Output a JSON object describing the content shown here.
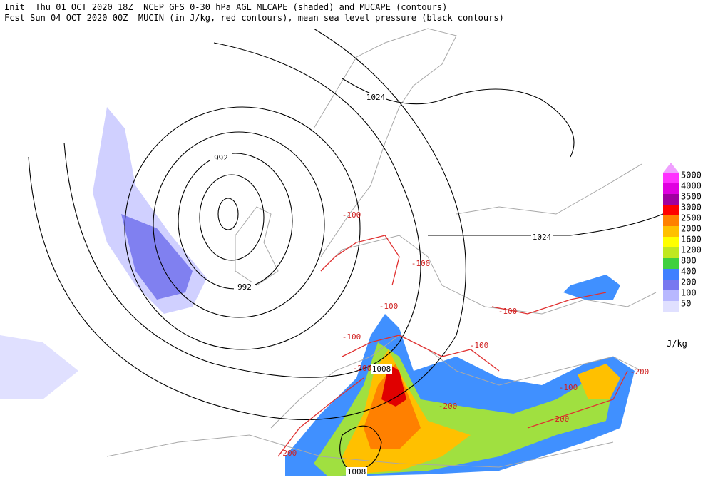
{
  "header": {
    "line1": "Init  Thu 01 OCT 2020 18Z  NCEP GFS 0-30 hPa AGL MLCAPE (shaded) and MUCAPE (contours)",
    "line2": "Fcst Sun 04 OCT 2020 00Z  MUCIN (in J/kg, red contours), mean sea level pressure (black contours)"
  },
  "legend": {
    "unit": "J/kg",
    "levels": [
      5000,
      4000,
      3500,
      3000,
      2500,
      2000,
      1600,
      1200,
      800,
      400,
      200,
      100,
      50
    ],
    "colors": [
      "#ff30ff",
      "#e000e0",
      "#a000a0",
      "#ff0000",
      "#ff8000",
      "#ffc000",
      "#ffff00",
      "#c0e820",
      "#40d040",
      "#4080ff",
      "#7878f0",
      "#b8b8ff",
      "#e0e0ff"
    ],
    "top_color": "#f0a0ff"
  },
  "pressure_labels": [
    1024,
    992,
    1024,
    992,
    1008,
    1008
  ],
  "mucin_labels": [
    -100,
    -100,
    -100,
    -100,
    -200,
    -200,
    -200,
    -200,
    -100,
    -200,
    -100,
    -100
  ]
}
